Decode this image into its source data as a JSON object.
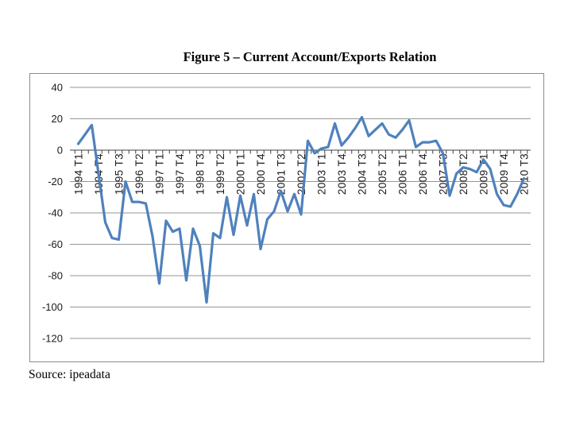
{
  "page": {
    "title": "Figure 5 – Current Account/Exports Relation",
    "source": "Source: ipeadata"
  },
  "chart_data": {
    "type": "line",
    "title": "Figure 5 – Current Account/Exports Relation",
    "xlabel": "",
    "ylabel": "",
    "ylim": [
      -120,
      40
    ],
    "yticks": [
      40,
      20,
      0,
      -20,
      -40,
      -60,
      -80,
      -100,
      -120
    ],
    "grid": true,
    "legend_position": "none",
    "line_color": "#4f81bd",
    "x_labels_shown": [
      "1994 T1",
      "1994 T4",
      "1995 T3",
      "1996 T2",
      "1997 T1",
      "1997 T4",
      "1998 T3",
      "1999 T2",
      "2000 T1",
      "2000 T4",
      "2001 T3",
      "2002 T2",
      "2003 T1",
      "2003 T4",
      "2004 T3",
      "2005 T2",
      "2006 T1",
      "2006 T4",
      "2007 T3",
      "2008 T2",
      "2009 T1",
      "2009 T4",
      "2010 T3"
    ],
    "categories": [
      "1994 T1",
      "1994 T2",
      "1994 T3",
      "1994 T4",
      "1995 T1",
      "1995 T2",
      "1995 T3",
      "1995 T4",
      "1996 T1",
      "1996 T2",
      "1996 T3",
      "1996 T4",
      "1997 T1",
      "1997 T2",
      "1997 T3",
      "1997 T4",
      "1998 T1",
      "1998 T2",
      "1998 T3",
      "1998 T4",
      "1999 T1",
      "1999 T2",
      "1999 T3",
      "1999 T4",
      "2000 T1",
      "2000 T2",
      "2000 T3",
      "2000 T4",
      "2001 T1",
      "2001 T2",
      "2001 T3",
      "2001 T4",
      "2002 T1",
      "2002 T2",
      "2002 T3",
      "2002 T4",
      "2003 T1",
      "2003 T2",
      "2003 T3",
      "2003 T4",
      "2004 T1",
      "2004 T2",
      "2004 T3",
      "2004 T4",
      "2005 T1",
      "2005 T2",
      "2005 T3",
      "2005 T4",
      "2006 T1",
      "2006 T2",
      "2006 T3",
      "2006 T4",
      "2007 T1",
      "2007 T2",
      "2007 T3",
      "2007 T4",
      "2008 T1",
      "2008 T2",
      "2008 T3",
      "2008 T4",
      "2009 T1",
      "2009 T2",
      "2009 T3",
      "2009 T4",
      "2010 T1",
      "2010 T2",
      "2010 T3"
    ],
    "series": [
      {
        "name": "Current Account/Exports",
        "values": [
          4,
          10,
          16,
          -15,
          -46,
          -56,
          -57,
          -20,
          -33,
          -33,
          -34,
          -55,
          -85,
          -45,
          -52,
          -50,
          -83,
          -50,
          -61,
          -97,
          -53,
          -56,
          -30,
          -54,
          -29,
          -48,
          -28,
          -63,
          -44,
          -39,
          -26,
          -39,
          -28,
          -41,
          6,
          -2,
          1,
          2,
          17,
          3,
          8,
          14,
          21,
          9,
          13,
          17,
          10,
          8,
          13,
          19,
          2,
          5,
          5,
          6,
          -2,
          -29,
          -15,
          -11,
          -12,
          -14,
          -6,
          -12,
          -28,
          -35,
          -36,
          -28,
          -18
        ]
      }
    ]
  }
}
